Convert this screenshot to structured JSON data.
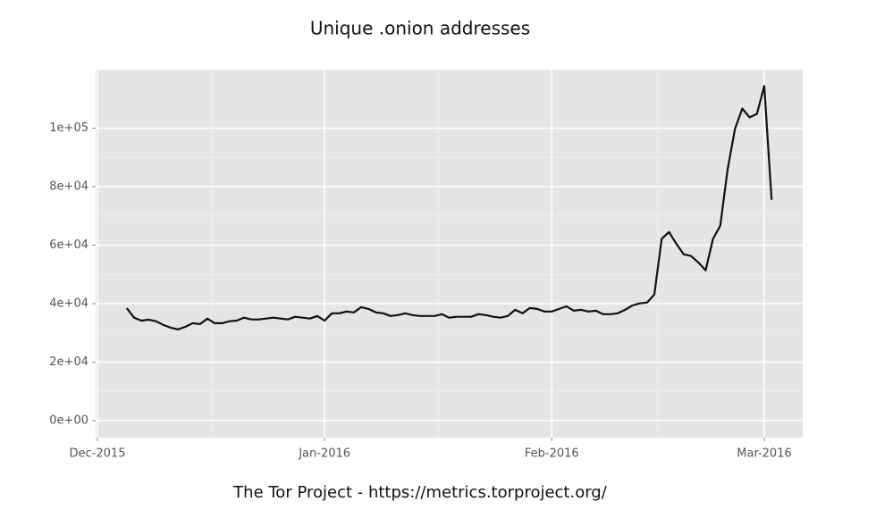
{
  "chart_data": {
    "type": "line",
    "title": "Unique .onion addresses",
    "caption": "The Tor Project - https://metrics.torproject.org/",
    "categories": [
      "Dec-2015",
      null,
      null,
      null,
      null,
      null,
      null,
      null,
      null,
      null,
      null,
      null,
      null,
      null,
      null,
      null,
      null,
      null,
      null,
      null,
      null,
      null,
      null,
      null,
      null,
      null,
      null,
      null,
      null,
      null,
      null,
      "Jan-2016",
      null,
      null,
      null,
      null,
      null,
      null,
      null,
      null,
      null,
      null,
      null,
      null,
      null,
      null,
      null,
      null,
      null,
      null,
      null,
      null,
      null,
      null,
      null,
      null,
      null,
      null,
      null,
      null,
      null,
      null,
      "Feb-2016",
      null,
      null,
      null,
      null,
      null,
      null,
      null,
      null,
      null,
      null,
      null,
      null,
      null,
      null,
      null,
      null,
      null,
      null,
      null,
      null,
      null,
      null,
      null,
      null,
      null,
      null,
      null,
      null,
      "Mar-2016",
      null
    ],
    "values": [
      null,
      null,
      null,
      null,
      38500,
      35200,
      34200,
      34500,
      34000,
      32700,
      31800,
      31200,
      32100,
      33300,
      33000,
      34900,
      33300,
      33300,
      34000,
      34200,
      35200,
      34600,
      34600,
      34900,
      35200,
      34900,
      34600,
      35500,
      35200,
      34900,
      35800,
      34200,
      36700,
      36700,
      37300,
      37000,
      38800,
      38200,
      37000,
      36700,
      35800,
      36100,
      36700,
      36100,
      35800,
      35800,
      35800,
      36400,
      35200,
      35500,
      35500,
      35500,
      36400,
      36100,
      35500,
      35200,
      35800,
      37900,
      36700,
      38500,
      38200,
      37300,
      37300,
      38200,
      39100,
      37600,
      37900,
      37300,
      37600,
      36400,
      36400,
      36700,
      37900,
      39400,
      40100,
      40400,
      43100,
      62100,
      64500,
      60500,
      56900,
      56300,
      54100,
      51400,
      62100,
      66700,
      85900,
      99700,
      106700,
      103700,
      104900,
      114400,
      75500
    ],
    "color": "#111111",
    "ylim": [
      -5800,
      120000
    ],
    "yticks": [
      {
        "value": 0,
        "label": "0e+00"
      },
      {
        "value": 20000,
        "label": "2e+04"
      },
      {
        "value": 40000,
        "label": "4e+04"
      },
      {
        "value": 60000,
        "label": "6e+04"
      },
      {
        "value": 80000,
        "label": "8e+04"
      },
      {
        "value": 100000,
        "label": "1e+05"
      }
    ],
    "grid": true
  }
}
